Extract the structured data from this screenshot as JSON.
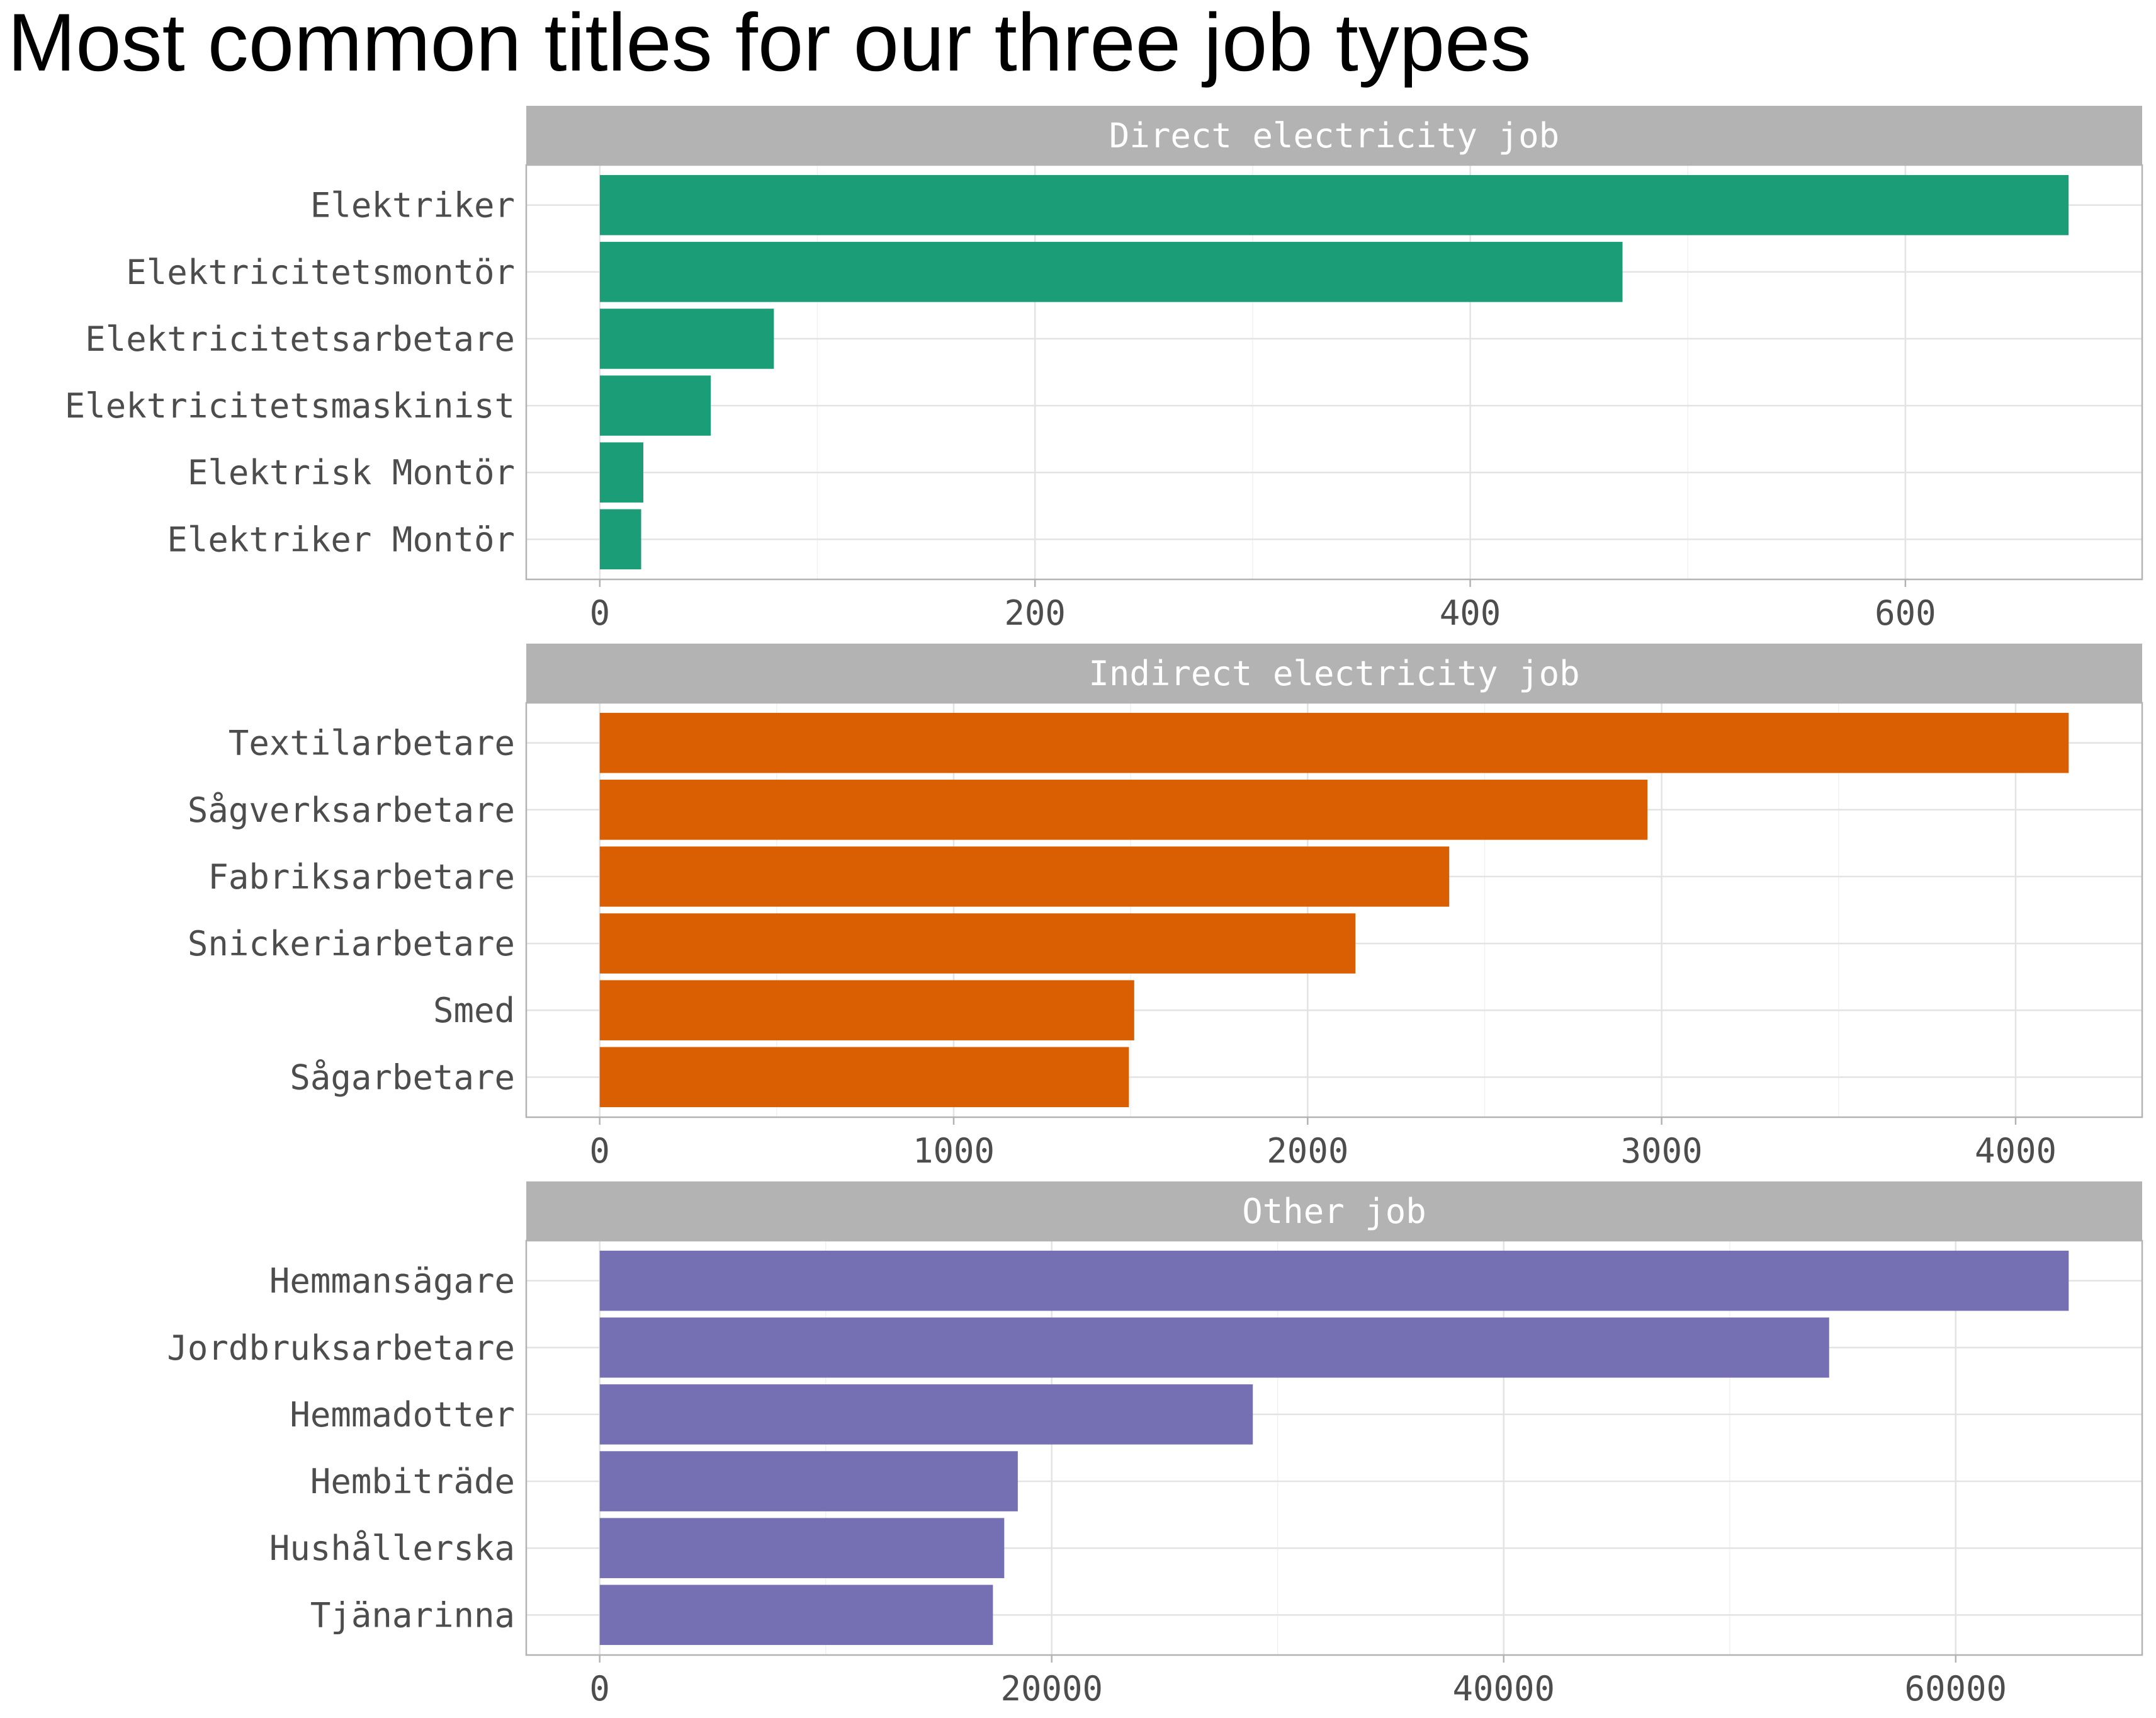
{
  "title": "Most common titles for our three job types",
  "chart_data": [
    {
      "type": "bar",
      "orientation": "horizontal",
      "facet": "Direct electricity job",
      "color": "#1b9e77",
      "categories": [
        "Elektriker",
        "Elektricitetsmontör",
        "Elektricitetsarbetare",
        "Elektricitetsmaskinist",
        "Elektrisk Montör",
        "Elektriker Montör"
      ],
      "values": [
        675,
        470,
        80,
        51,
        20,
        19
      ],
      "xlim": [
        -33.8,
        708.8
      ],
      "ticks": [
        0,
        200,
        400,
        600
      ],
      "tick_labels": [
        "0",
        "200",
        "400",
        "600"
      ]
    },
    {
      "type": "bar",
      "orientation": "horizontal",
      "facet": "Indirect electricity job",
      "color": "#d95f02",
      "categories": [
        "Textilarbetare",
        "Sågverksarbetare",
        "Fabriksarbetare",
        "Snickeriarbetare",
        "Smed",
        "Sågarbetare"
      ],
      "values": [
        4150,
        2960,
        2400,
        2135,
        1510,
        1495
      ],
      "xlim": [
        -207.5,
        4357.5
      ],
      "ticks": [
        0,
        1000,
        2000,
        3000,
        4000
      ],
      "tick_labels": [
        "0",
        "1000",
        "2000",
        "3000",
        "4000"
      ]
    },
    {
      "type": "bar",
      "orientation": "horizontal",
      "facet": "Other job",
      "color": "#7570b3",
      "categories": [
        "Hemmansägare",
        "Jordbruksarbetare",
        "Hemmadotter",
        "Hembiträde",
        "Hushållerska",
        "Tjänarinna"
      ],
      "values": [
        65000,
        54400,
        28900,
        18500,
        17900,
        17400
      ],
      "xlim": [
        -3250,
        68250
      ],
      "ticks": [
        0,
        20000,
        40000,
        60000
      ],
      "tick_labels": [
        "0",
        "20000",
        "40000",
        "60000"
      ]
    }
  ],
  "grid": true,
  "legend": "none"
}
